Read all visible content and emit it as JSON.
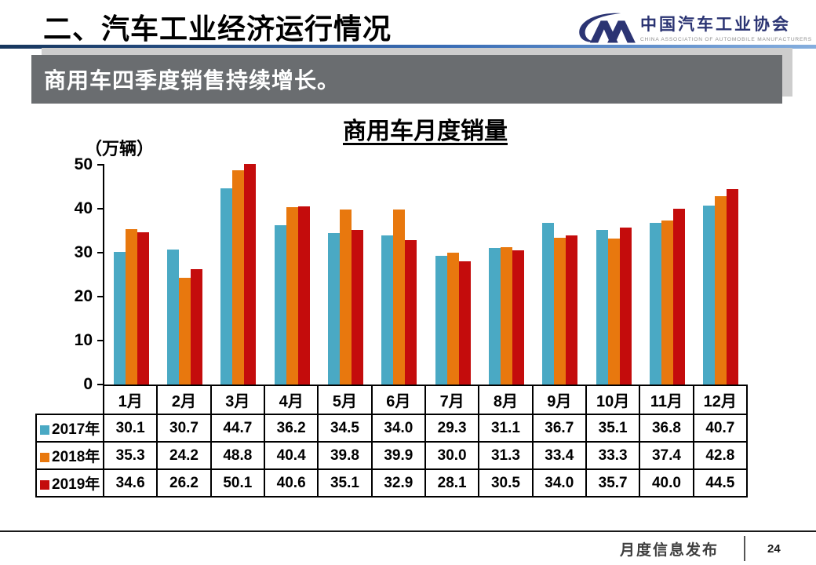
{
  "header": {
    "title": "二、汽车工业经济运行情况",
    "logo": {
      "cn": "中国汽车工业协会",
      "en": "CHINA ASSOCIATION OF AUTOMOBILE MANUFACTURERS",
      "color": "#2b3473"
    }
  },
  "banner": {
    "text": "商用车四季度销售持续增长。",
    "background": "#6a6d70"
  },
  "chart_data": {
    "type": "bar",
    "title": "商用车月度销量",
    "unit_label": "（万辆）",
    "categories": [
      "1月",
      "2月",
      "3月",
      "4月",
      "5月",
      "6月",
      "7月",
      "8月",
      "9月",
      "10月",
      "11月",
      "12月"
    ],
    "series": [
      {
        "name": "2017年",
        "color": "#4aa9c4",
        "values": [
          30.1,
          30.7,
          44.7,
          36.2,
          34.5,
          34.0,
          29.3,
          31.1,
          36.7,
          35.1,
          36.8,
          40.7
        ]
      },
      {
        "name": "2018年",
        "color": "#e8780e",
        "values": [
          35.3,
          24.2,
          48.8,
          40.4,
          39.8,
          39.9,
          30.0,
          31.3,
          33.4,
          33.3,
          37.4,
          42.8
        ]
      },
      {
        "name": "2019年",
        "color": "#c40c0c",
        "values": [
          34.6,
          26.2,
          50.1,
          40.6,
          35.1,
          32.9,
          28.1,
          30.5,
          34.0,
          35.7,
          40.0,
          44.5
        ]
      }
    ],
    "ylim": [
      0,
      50
    ],
    "yticks": [
      0,
      10,
      20,
      30,
      40,
      50
    ],
    "grid": false,
    "legend_position": "table-left",
    "value_decimals": 1
  },
  "footer": {
    "label": "月度信息发布",
    "page": "24"
  }
}
